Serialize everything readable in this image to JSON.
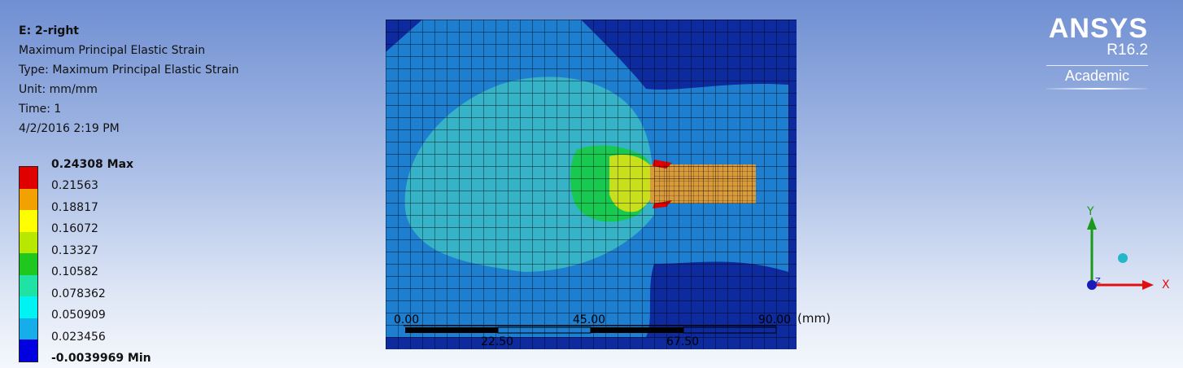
{
  "info": {
    "title": "E: 2-right",
    "lines": [
      "Maximum Principal Elastic Strain",
      "Type: Maximum Principal Elastic Strain",
      "Unit: mm/mm",
      "Time: 1",
      "4/2/2016 2:19 PM"
    ]
  },
  "legend": {
    "labels": [
      "0.24308 Max",
      "0.21563",
      "0.18817",
      "0.16072",
      "0.13327",
      "0.10582",
      "0.078362",
      "0.050909",
      "0.023456",
      "-0.0039969 Min"
    ],
    "colors": [
      "#e00000",
      "#f2a100",
      "#ffff00",
      "#b8e800",
      "#1ec81e",
      "#1fe2a4",
      "#00f2f2",
      "#16aeea",
      "#0000e0"
    ]
  },
  "scale_bar": {
    "top_ticks": [
      "0.00",
      "45.00",
      "90.00"
    ],
    "bottom_ticks": [
      "22.50",
      "67.50"
    ],
    "unit": "(mm)"
  },
  "logo": {
    "name": "ANSYS",
    "version": "R16.2",
    "edition": "Academic"
  },
  "triad": {
    "x_label": "X",
    "y_label": "Y",
    "z_label": "Z"
  },
  "colors": {
    "mesh_dark": "#0d2a9e",
    "mesh_light": "#1e7ed0",
    "mesh_mid": "#37b3c8",
    "mesh_green": "#18c850",
    "mesh_yellow": "#e2e61a",
    "mesh_orange": "#d99a3c"
  }
}
